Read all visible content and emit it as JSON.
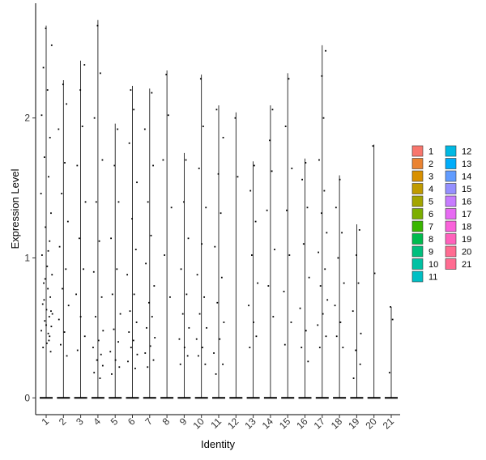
{
  "chart_data": {
    "type": "scatter",
    "subtype": "violin-jitter",
    "xlabel": "Identity",
    "ylabel": "Expression Level",
    "ylim": [
      -0.12,
      2.82
    ],
    "yticks": [
      0,
      1,
      2
    ],
    "grid": false,
    "legend_position": "right",
    "categories": [
      "1",
      "2",
      "3",
      "4",
      "5",
      "6",
      "7",
      "8",
      "9",
      "10",
      "11",
      "12",
      "13",
      "14",
      "15",
      "16",
      "17",
      "18",
      "19",
      "20",
      "21"
    ],
    "series": [
      {
        "name": "1",
        "color": "#F8766D",
        "max": 2.66,
        "points": [
          [
            0.26,
            0.33
          ],
          [
            0.04,
            0.39
          ],
          [
            0.12,
            0.46
          ],
          [
            0.3,
            0.51
          ],
          [
            -0.08,
            0.55
          ],
          [
            0.18,
            0.58
          ],
          [
            0.02,
            0.63
          ],
          [
            -0.2,
            0.67
          ],
          [
            0.24,
            0.72
          ],
          [
            0.1,
            0.78
          ],
          [
            -0.14,
            0.82
          ],
          [
            0.34,
            0.88
          ],
          [
            0.06,
            0.94
          ],
          [
            -0.24,
            1.02
          ],
          [
            0.2,
            1.12
          ],
          [
            -0.04,
            1.22
          ],
          [
            0.28,
            1.32
          ],
          [
            -0.3,
            1.46
          ],
          [
            0.14,
            1.58
          ],
          [
            -0.1,
            1.72
          ],
          [
            0.22,
            1.86
          ],
          [
            -0.26,
            2.02
          ],
          [
            0.08,
            2.2
          ],
          [
            -0.16,
            2.36
          ],
          [
            0.32,
            2.52
          ],
          [
            -0.02,
            2.64
          ],
          [
            0.16,
            0.41
          ],
          [
            -0.28,
            0.48
          ],
          [
            0.36,
            0.6
          ],
          [
            -0.12,
            0.7
          ],
          [
            0.0,
            0.52
          ],
          [
            0.2,
            0.44
          ],
          [
            -0.06,
            0.85
          ],
          [
            0.12,
            1.05
          ],
          [
            -0.18,
            0.36
          ],
          [
            0.28,
            0.62
          ]
        ]
      },
      {
        "name": "2",
        "color": "#EA8331",
        "max": 2.27,
        "points": [
          [
            0.2,
            0.3
          ],
          [
            -0.16,
            0.38
          ],
          [
            0.06,
            0.47
          ],
          [
            -0.26,
            0.56
          ],
          [
            0.3,
            0.66
          ],
          [
            -0.06,
            0.78
          ],
          [
            0.14,
            0.92
          ],
          [
            -0.22,
            1.08
          ],
          [
            0.26,
            1.26
          ],
          [
            -0.1,
            1.46
          ],
          [
            0.08,
            1.68
          ],
          [
            -0.28,
            1.92
          ],
          [
            0.18,
            2.1
          ],
          [
            -0.02,
            2.24
          ]
        ]
      },
      {
        "name": "3",
        "color": "#D89000",
        "max": 2.41,
        "points": [
          [
            -0.18,
            0.34
          ],
          [
            0.24,
            0.44
          ],
          [
            0.0,
            0.58
          ],
          [
            -0.26,
            0.74
          ],
          [
            0.16,
            0.92
          ],
          [
            -0.08,
            1.14
          ],
          [
            0.28,
            1.4
          ],
          [
            -0.2,
            1.66
          ],
          [
            0.1,
            1.94
          ],
          [
            -0.02,
            2.2
          ],
          [
            0.22,
            2.38
          ]
        ]
      },
      {
        "name": "4",
        "color": "#C09B00",
        "max": 2.7,
        "points": [
          [
            0.12,
            0.14
          ],
          [
            -0.22,
            0.18
          ],
          [
            0.28,
            0.23
          ],
          [
            -0.06,
            0.27
          ],
          [
            0.18,
            0.31
          ],
          [
            -0.28,
            0.36
          ],
          [
            0.04,
            0.41
          ],
          [
            0.3,
            0.48
          ],
          [
            -0.14,
            0.58
          ],
          [
            0.22,
            0.72
          ],
          [
            -0.24,
            0.9
          ],
          [
            0.08,
            1.12
          ],
          [
            -0.1,
            1.4
          ],
          [
            0.26,
            1.7
          ],
          [
            -0.2,
            2.0
          ],
          [
            0.14,
            2.32
          ],
          [
            -0.02,
            2.66
          ]
        ]
      },
      {
        "name": "5",
        "color": "#A3A500",
        "max": 1.96,
        "points": [
          [
            -0.2,
            0.17
          ],
          [
            0.24,
            0.22
          ],
          [
            0.02,
            0.27
          ],
          [
            -0.28,
            0.33
          ],
          [
            0.18,
            0.4
          ],
          [
            -0.08,
            0.49
          ],
          [
            0.3,
            0.6
          ],
          [
            -0.16,
            0.74
          ],
          [
            0.1,
            0.92
          ],
          [
            -0.24,
            1.14
          ],
          [
            0.2,
            1.4
          ],
          [
            -0.04,
            1.66
          ],
          [
            0.14,
            1.92
          ]
        ]
      },
      {
        "name": "6",
        "color": "#7CAE00",
        "max": 2.23,
        "points": [
          [
            0.16,
            0.21
          ],
          [
            -0.26,
            0.26
          ],
          [
            0.28,
            0.31
          ],
          [
            -0.08,
            0.36
          ],
          [
            0.06,
            0.41
          ],
          [
            -0.2,
            0.47
          ],
          [
            0.24,
            0.54
          ],
          [
            -0.14,
            0.62
          ],
          [
            0.1,
            0.74
          ],
          [
            -0.3,
            0.88
          ],
          [
            0.2,
            1.06
          ],
          [
            -0.02,
            1.28
          ],
          [
            0.26,
            1.54
          ],
          [
            -0.18,
            1.82
          ],
          [
            0.08,
            2.06
          ],
          [
            -0.1,
            2.2
          ]
        ]
      },
      {
        "name": "7",
        "color": "#39B600",
        "max": 2.21,
        "points": [
          [
            -0.12,
            0.22
          ],
          [
            0.22,
            0.27
          ],
          [
            -0.26,
            0.32
          ],
          [
            0.04,
            0.37
          ],
          [
            0.3,
            0.43
          ],
          [
            -0.18,
            0.5
          ],
          [
            0.14,
            0.58
          ],
          [
            -0.04,
            0.68
          ],
          [
            0.26,
            0.8
          ],
          [
            -0.22,
            0.96
          ],
          [
            0.08,
            1.16
          ],
          [
            -0.1,
            1.4
          ],
          [
            0.2,
            1.66
          ],
          [
            -0.28,
            1.92
          ],
          [
            0.12,
            2.18
          ]
        ]
      },
      {
        "name": "8",
        "color": "#00BB4E",
        "max": 2.34,
        "points": [
          [
            0.18,
            0.72
          ],
          [
            -0.14,
            1.02
          ],
          [
            0.26,
            1.36
          ],
          [
            -0.22,
            1.7
          ],
          [
            0.08,
            2.02
          ],
          [
            -0.04,
            2.31
          ]
        ]
      },
      {
        "name": "9",
        "color": "#00BF7D",
        "max": 1.75,
        "points": [
          [
            -0.22,
            0.24
          ],
          [
            0.2,
            0.3
          ],
          [
            0.02,
            0.36
          ],
          [
            -0.28,
            0.42
          ],
          [
            0.28,
            0.5
          ],
          [
            -0.08,
            0.6
          ],
          [
            0.14,
            0.74
          ],
          [
            -0.18,
            0.92
          ],
          [
            0.24,
            1.14
          ],
          [
            -0.02,
            1.4
          ],
          [
            0.1,
            1.7
          ]
        ]
      },
      {
        "name": "10",
        "color": "#00C1A3",
        "max": 2.31,
        "points": [
          [
            0.22,
            0.24
          ],
          [
            -0.18,
            0.3
          ],
          [
            0.06,
            0.36
          ],
          [
            -0.28,
            0.42
          ],
          [
            0.3,
            0.5
          ],
          [
            -0.1,
            0.6
          ],
          [
            0.16,
            0.72
          ],
          [
            -0.24,
            0.88
          ],
          [
            0.02,
            1.1
          ],
          [
            0.26,
            1.36
          ],
          [
            -0.14,
            1.64
          ],
          [
            0.1,
            1.94
          ],
          [
            -0.04,
            2.28
          ]
        ]
      },
      {
        "name": "11",
        "color": "#00BFC4",
        "max": 2.09,
        "points": [
          [
            -0.16,
            0.17
          ],
          [
            0.24,
            0.24
          ],
          [
            -0.28,
            0.32
          ],
          [
            0.06,
            0.42
          ],
          [
            0.3,
            0.54
          ],
          [
            -0.08,
            0.68
          ],
          [
            0.18,
            0.86
          ],
          [
            -0.22,
            1.08
          ],
          [
            0.12,
            1.32
          ],
          [
            -0.02,
            1.6
          ],
          [
            0.26,
            1.86
          ],
          [
            -0.12,
            2.06
          ]
        ]
      },
      {
        "name": "12",
        "color": "#00B9E3",
        "max": 2.04,
        "points": [
          [
            0.1,
            1.58
          ],
          [
            -0.04,
            2.0
          ]
        ]
      },
      {
        "name": "13",
        "color": "#00ADFA",
        "max": 1.69,
        "points": [
          [
            -0.2,
            0.36
          ],
          [
            0.18,
            0.44
          ],
          [
            0.02,
            0.54
          ],
          [
            -0.26,
            0.66
          ],
          [
            0.26,
            0.82
          ],
          [
            -0.08,
            1.02
          ],
          [
            0.14,
            1.26
          ],
          [
            -0.16,
            1.48
          ],
          [
            0.06,
            1.66
          ]
        ]
      },
      {
        "name": "14",
        "color": "#619CFF",
        "max": 2.09,
        "points": [
          [
            0.16,
            0.58
          ],
          [
            -0.12,
            0.8
          ],
          [
            0.24,
            1.06
          ],
          [
            -0.2,
            1.34
          ],
          [
            0.08,
            1.62
          ],
          [
            -0.04,
            1.84
          ],
          [
            0.12,
            2.06
          ]
        ]
      },
      {
        "name": "15",
        "color": "#9590FF",
        "max": 2.32,
        "points": [
          [
            -0.16,
            0.38
          ],
          [
            0.2,
            0.54
          ],
          [
            -0.22,
            0.76
          ],
          [
            0.1,
            1.02
          ],
          [
            -0.06,
            1.34
          ],
          [
            0.24,
            1.64
          ],
          [
            -0.12,
            1.94
          ],
          [
            0.06,
            2.28
          ]
        ]
      },
      {
        "name": "16",
        "color": "#C77CFF",
        "max": 1.71,
        "points": [
          [
            0.18,
            0.26
          ],
          [
            -0.2,
            0.36
          ],
          [
            0.06,
            0.48
          ],
          [
            -0.28,
            0.64
          ],
          [
            0.24,
            0.86
          ],
          [
            -0.08,
            1.1
          ],
          [
            0.14,
            1.36
          ],
          [
            -0.16,
            1.56
          ],
          [
            0.04,
            1.68
          ]
        ]
      },
      {
        "name": "17",
        "color": "#E76BF3",
        "max": 2.52,
        "points": [
          [
            -0.14,
            0.36
          ],
          [
            0.22,
            0.44
          ],
          [
            -0.26,
            0.52
          ],
          [
            0.04,
            0.6
          ],
          [
            0.3,
            0.7
          ],
          [
            -0.1,
            0.8
          ],
          [
            0.16,
            0.92
          ],
          [
            -0.22,
            1.04
          ],
          [
            0.26,
            1.18
          ],
          [
            -0.04,
            1.32
          ],
          [
            0.12,
            1.48
          ],
          [
            -0.18,
            1.7
          ],
          [
            0.08,
            2.0
          ],
          [
            -0.02,
            2.3
          ],
          [
            0.2,
            2.48
          ]
        ]
      },
      {
        "name": "18",
        "color": "#FA62DB",
        "max": 1.59,
        "points": [
          [
            0.2,
            0.36
          ],
          [
            -0.16,
            0.44
          ],
          [
            0.06,
            0.54
          ],
          [
            -0.26,
            0.66
          ],
          [
            0.26,
            0.82
          ],
          [
            -0.08,
            1.0
          ],
          [
            0.14,
            1.18
          ],
          [
            -0.2,
            1.36
          ],
          [
            0.02,
            1.56
          ]
        ]
      },
      {
        "name": "19",
        "color": "#FF62BC",
        "max": 1.24,
        "points": [
          [
            -0.18,
            0.14
          ],
          [
            0.2,
            0.24
          ],
          [
            -0.06,
            0.34
          ],
          [
            0.24,
            0.46
          ],
          [
            -0.22,
            0.62
          ],
          [
            0.1,
            0.82
          ],
          [
            -0.02,
            1.02
          ],
          [
            0.16,
            1.2
          ]
        ]
      },
      {
        "name": "20",
        "color": "#FF6C91",
        "max": 1.81,
        "points": [
          [
            0.04,
            0.89
          ],
          [
            -0.06,
            1.8
          ]
        ]
      },
      {
        "name": "21",
        "color": "#FF6C91",
        "max": 0.65,
        "points": [
          [
            -0.1,
            0.18
          ],
          [
            0.08,
            0.56
          ],
          [
            -0.04,
            0.65
          ]
        ]
      }
    ]
  }
}
